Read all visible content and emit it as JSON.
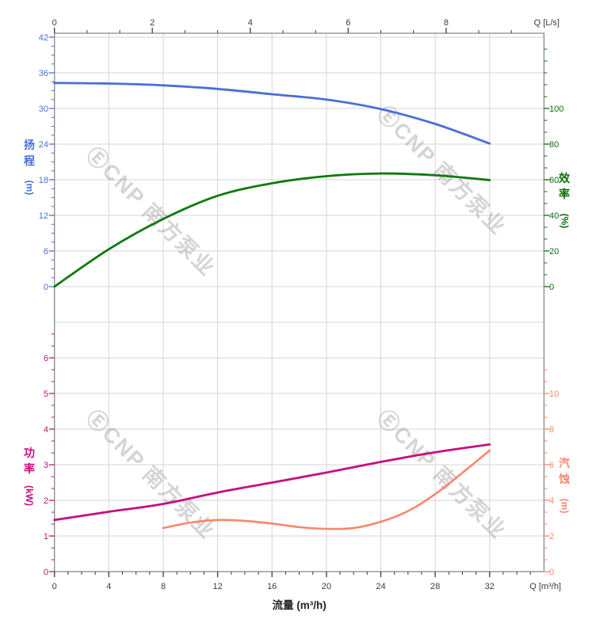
{
  "watermark": {
    "text": "ⒺCNP 南方泵业"
  },
  "chart_data": {
    "type": "line",
    "title": "",
    "x_axis_bottom": {
      "title": "流量 (m³/h)",
      "corner_label": "Q [m³/h]",
      "min": 0,
      "max": 36,
      "major_ticks": [
        0,
        4,
        8,
        12,
        16,
        20,
        24,
        28,
        32
      ],
      "minor_step": 1,
      "minor_max": 35,
      "tick_color": "#3c3c3c",
      "grid": true
    },
    "x_axis_top": {
      "corner_label": "Q [L/s]",
      "min": 0,
      "max": 10,
      "major_ticks": [
        0,
        2,
        4,
        6,
        8
      ],
      "minor_step": 0.6667,
      "minor_max": 9.4,
      "tick_color": "#3c3c3c",
      "grid": false
    },
    "y_axes": {
      "head": {
        "name": "扬程",
        "unit": "(m)",
        "side": "left",
        "section": "top",
        "color": "#4a6fd9",
        "major_ticks": [
          0,
          6,
          12,
          18,
          24,
          30,
          36,
          42
        ],
        "minor_step": 1.5,
        "minor_max": 42,
        "units_per_gridrow": 6
      },
      "efficiency": {
        "name": "效率",
        "unit": "(%)",
        "side": "right",
        "section": "top",
        "color": "#0d6e0d",
        "major_ticks": [
          0,
          20,
          40,
          60,
          80,
          100
        ],
        "minor_step": 6.6667,
        "minor_max": 133.5,
        "units_per_gridrow": 20
      },
      "power": {
        "name": "功率",
        "unit": "(kW)",
        "side": "left",
        "section": "bottom",
        "color": "#c6107f",
        "major_ticks": [
          0,
          1,
          2,
          3,
          4,
          5,
          6
        ],
        "minor_step": 0.33333,
        "minor_max": 6.7,
        "units_per_gridrow": 1
      },
      "npsh": {
        "name": "汽蚀",
        "unit": "(m)",
        "side": "right",
        "section": "bottom",
        "color": "#f8876a",
        "major_ticks": [
          0,
          2,
          4,
          6,
          8,
          10
        ],
        "minor_step": 0.6667,
        "minor_max": 11.4,
        "units_per_gridrow": 2
      }
    },
    "series": [
      {
        "name": "head",
        "axis": "head",
        "color": "#4a6fd9",
        "stroke_width": 2.8,
        "points": [
          [
            0,
            34.3
          ],
          [
            4,
            34.2
          ],
          [
            8,
            33.9
          ],
          [
            12,
            33.3
          ],
          [
            16,
            32.4
          ],
          [
            20,
            31.5
          ],
          [
            24,
            29.9
          ],
          [
            28,
            27.4
          ],
          [
            32,
            24.1
          ]
        ]
      },
      {
        "name": "efficiency",
        "axis": "efficiency",
        "color": "#0e7a0e",
        "stroke_width": 2.8,
        "points": [
          [
            0,
            0
          ],
          [
            4,
            21
          ],
          [
            8,
            38
          ],
          [
            12,
            51
          ],
          [
            16,
            58
          ],
          [
            20,
            62
          ],
          [
            24,
            63.5
          ],
          [
            28,
            62.5
          ],
          [
            32,
            59.8
          ]
        ]
      },
      {
        "name": "power",
        "axis": "power",
        "color": "#c6107f",
        "stroke_width": 2.8,
        "points": [
          [
            0,
            1.45
          ],
          [
            4,
            1.68
          ],
          [
            8,
            1.9
          ],
          [
            12,
            2.22
          ],
          [
            16,
            2.5
          ],
          [
            20,
            2.78
          ],
          [
            24,
            3.08
          ],
          [
            28,
            3.35
          ],
          [
            32,
            3.57
          ]
        ]
      },
      {
        "name": "npsh",
        "axis": "npsh",
        "color": "#f8876a",
        "stroke_width": 2.6,
        "points": [
          [
            8,
            2.45
          ],
          [
            10,
            2.75
          ],
          [
            12,
            2.9
          ],
          [
            14,
            2.85
          ],
          [
            16,
            2.7
          ],
          [
            18,
            2.5
          ],
          [
            20,
            2.4
          ],
          [
            22,
            2.45
          ],
          [
            24,
            2.8
          ],
          [
            26,
            3.4
          ],
          [
            28,
            4.35
          ],
          [
            30,
            5.55
          ],
          [
            32,
            6.8
          ]
        ]
      }
    ],
    "grid_color": "#d4d4d4",
    "border_color": "#8c8c8c",
    "text_color": "#3c3c3c"
  }
}
